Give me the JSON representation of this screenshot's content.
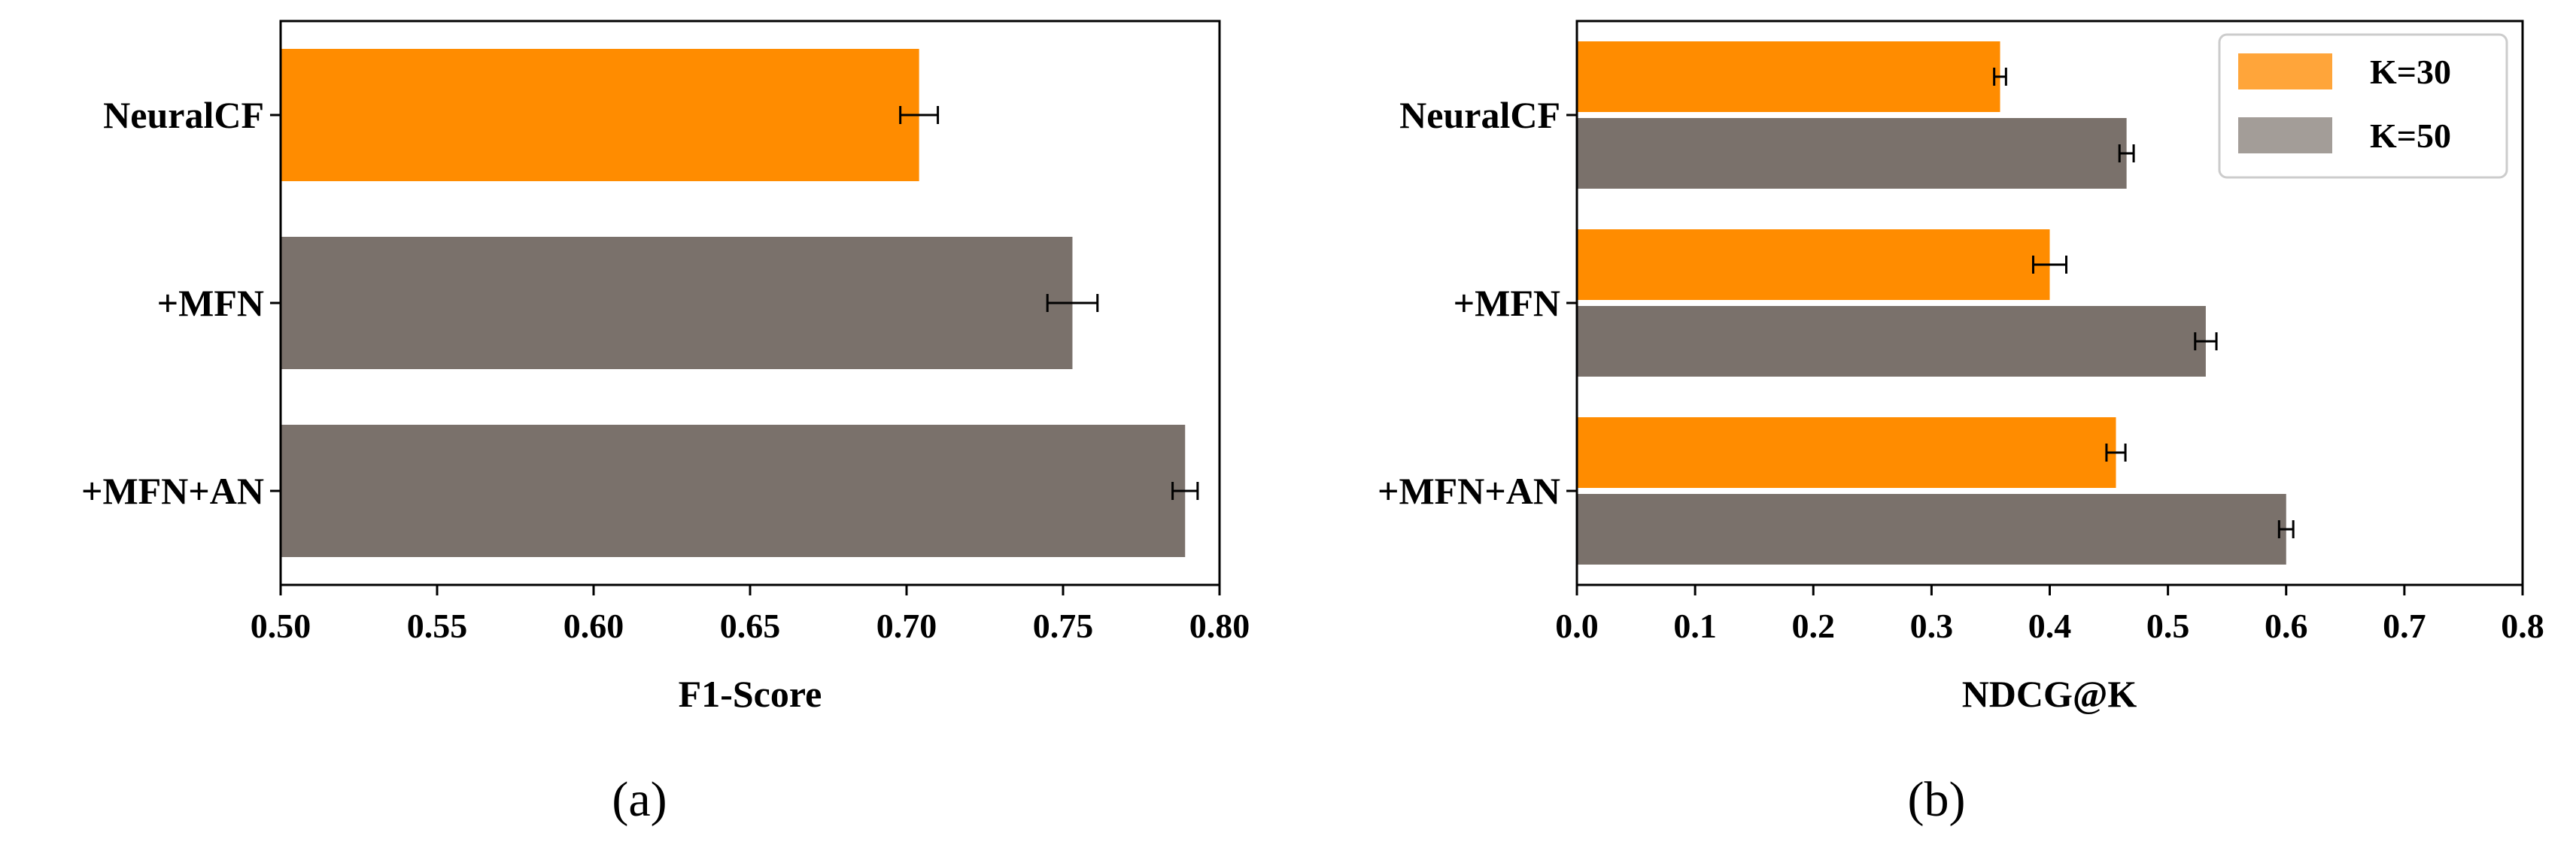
{
  "chart_data": [
    {
      "type": "bar",
      "orientation": "horizontal",
      "panel_label": "(a)",
      "categories": [
        "NeuralCF",
        "+MFN",
        "+MFN+AN"
      ],
      "series": [
        {
          "name": "F1-Score",
          "values": [
            0.704,
            0.753,
            0.789
          ],
          "errors": [
            0.006,
            0.008,
            0.004
          ],
          "colors": [
            "#ff8c00",
            "#7a716b",
            "#7a716b"
          ]
        }
      ],
      "xlabel": "F1-Score",
      "ylabel": "",
      "xlim": [
        0.5,
        0.8
      ],
      "xticks": [
        "0.50",
        "0.55",
        "0.60",
        "0.65",
        "0.70",
        "0.75",
        "0.80"
      ],
      "xtick_values": [
        0.5,
        0.55,
        0.6,
        0.65,
        0.7,
        0.75,
        0.8
      ]
    },
    {
      "type": "bar",
      "orientation": "horizontal",
      "panel_label": "(b)",
      "categories": [
        "NeuralCF",
        "+MFN",
        "+MFN+AN"
      ],
      "series": [
        {
          "name": "K=30",
          "values": [
            0.358,
            0.4,
            0.456
          ],
          "errors": [
            0.005,
            0.014,
            0.008
          ],
          "color": "#ff8c00"
        },
        {
          "name": "K=50",
          "values": [
            0.465,
            0.532,
            0.6
          ],
          "errors": [
            0.006,
            0.009,
            0.006
          ],
          "color": "#7a716b"
        }
      ],
      "xlabel": "NDCG@K",
      "ylabel": "",
      "xlim": [
        0.0,
        0.8
      ],
      "xticks": [
        "0.0",
        "0.1",
        "0.2",
        "0.3",
        "0.4",
        "0.5",
        "0.6",
        "0.7",
        "0.8"
      ],
      "xtick_values": [
        0.0,
        0.1,
        0.2,
        0.3,
        0.4,
        0.5,
        0.6,
        0.7,
        0.8
      ],
      "legend": {
        "position": "top-right",
        "entries": [
          "K=30",
          "K=50"
        ],
        "colors": [
          "#ffa53a",
          "#a39d98"
        ]
      }
    }
  ]
}
